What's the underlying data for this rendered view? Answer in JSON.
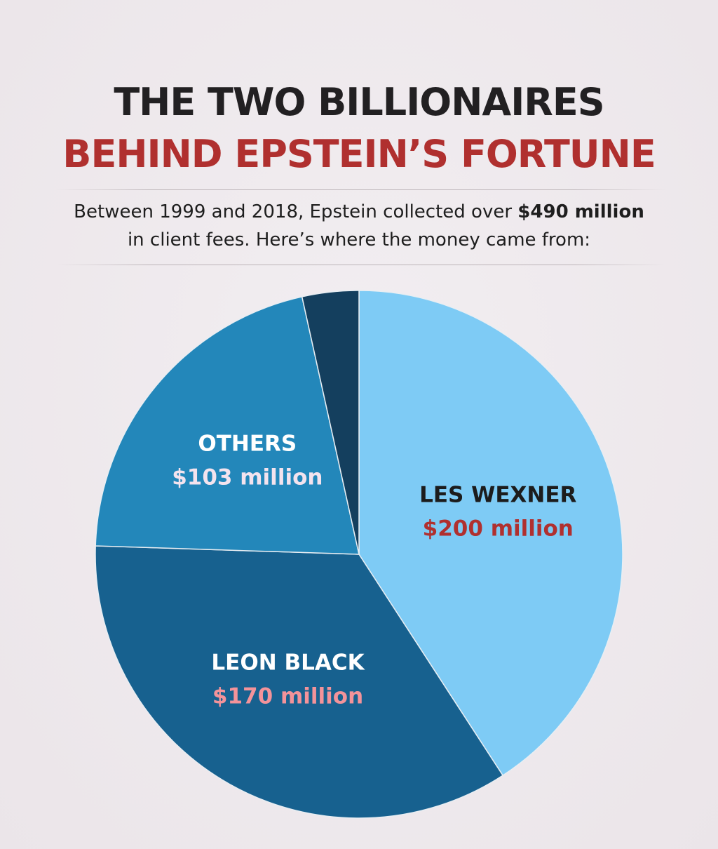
{
  "chart_data": {
    "type": "pie",
    "title": [
      "THE TWO BILLIONAIRES",
      "BEHIND EPSTEIN’S FORTUNE"
    ],
    "subtitle": [
      "Between 1999 and 2018, Epstein collected over ",
      "$490 million",
      " in client fees. Here’s where the money came from:"
    ],
    "categories": [
      "LES WEXNER",
      "LEON BLACK",
      "OTHERS",
      null
    ],
    "values": [
      200,
      170,
      103,
      17
    ],
    "value_labels": [
      "$200 million",
      "$170 million",
      "$103 million",
      null
    ],
    "colors": [
      "#7ecbf5",
      "#17618f",
      "#2387ba",
      "#143f5e"
    ]
  }
}
